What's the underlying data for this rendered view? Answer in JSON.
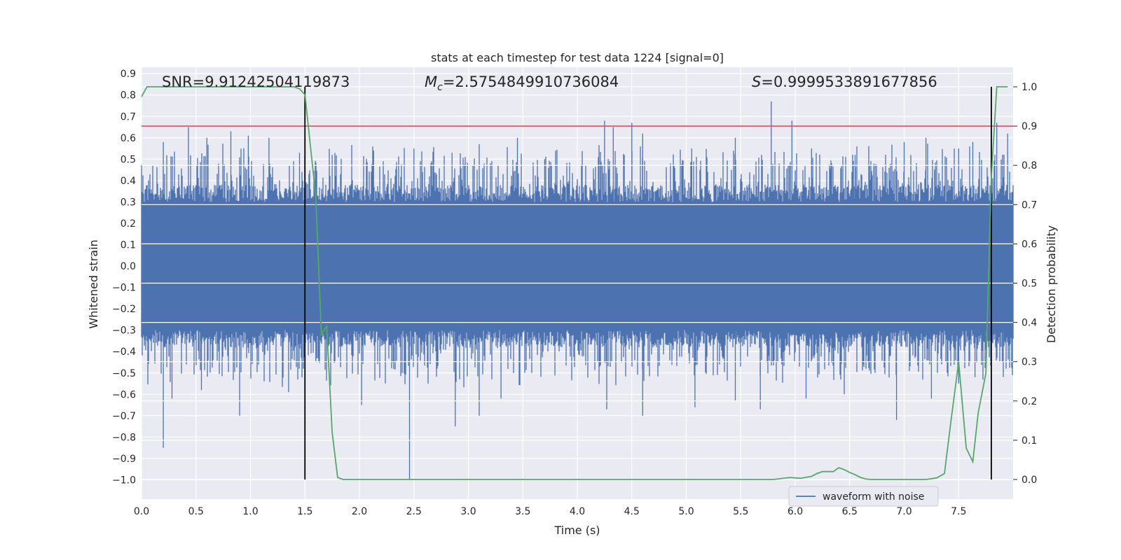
{
  "chart_data": {
    "type": "line",
    "title": "stats at each timestep for test data 1224 [signal=0]",
    "xlabel": "Time (s)",
    "ylabel": "Whitened strain",
    "y2label": "Detection probability",
    "xlim": [
      0.0,
      8.0
    ],
    "ylim": [
      -1.09,
      0.93
    ],
    "y2lim": [
      -0.05,
      1.05
    ],
    "xticks": [
      "0.0",
      "0.5",
      "1.0",
      "1.5",
      "2.0",
      "2.5",
      "3.0",
      "3.5",
      "4.0",
      "4.5",
      "5.0",
      "5.5",
      "6.0",
      "6.5",
      "7.0",
      "7.5"
    ],
    "yticks": [
      "0.9",
      "0.8",
      "0.7",
      "0.6",
      "0.5",
      "0.4",
      "0.3",
      "0.2",
      "0.1",
      "0.0",
      "−0.1",
      "−0.2",
      "−0.3",
      "−0.4",
      "−0.5",
      "−0.6",
      "−0.7",
      "−0.8",
      "−0.9",
      "−1.0"
    ],
    "y2ticks": [
      "1.0",
      "0.9",
      "0.8",
      "0.7",
      "0.6",
      "0.5",
      "0.4",
      "0.3",
      "0.2",
      "0.1",
      "0.0"
    ],
    "annotations": {
      "snr": "SNR=9.91242504119873",
      "mc_prefix": "M",
      "mc_sub": "c",
      "mc_value": "=2.5754849910736084",
      "s_prefix": "S",
      "s_value": "=0.9999533891677856"
    },
    "threshold_y2": 0.9,
    "vlines_x": [
      1.5,
      7.8
    ],
    "legend": {
      "label": "waveform with noise",
      "location": "lower-right"
    },
    "series": [
      {
        "name": "waveform with noise",
        "color": "#4c72b0",
        "description": "whitened strain noise, dense band approx ±0.4 with spikes",
        "peaks_high": [
          [
            0.2,
            0.58
          ],
          [
            0.43,
            0.65
          ],
          [
            0.6,
            0.6
          ],
          [
            0.82,
            0.63
          ],
          [
            0.98,
            0.61
          ],
          [
            1.17,
            0.6
          ],
          [
            1.45,
            0.53
          ],
          [
            1.75,
            0.52
          ],
          [
            2.13,
            0.54
          ],
          [
            2.5,
            0.55
          ],
          [
            2.85,
            0.53
          ],
          [
            3.1,
            0.57
          ],
          [
            3.45,
            0.6
          ],
          [
            3.7,
            0.5
          ],
          [
            4.25,
            0.68
          ],
          [
            4.33,
            0.65
          ],
          [
            4.5,
            0.67
          ],
          [
            4.6,
            0.62
          ],
          [
            5.05,
            0.55
          ],
          [
            5.45,
            0.6
          ],
          [
            5.78,
            0.77
          ],
          [
            5.97,
            0.68
          ],
          [
            6.15,
            0.55
          ],
          [
            6.55,
            0.52
          ],
          [
            7.0,
            0.58
          ],
          [
            7.2,
            0.6
          ],
          [
            7.5,
            0.55
          ],
          [
            7.63,
            0.58
          ],
          [
            7.85,
            0.67
          ],
          [
            7.95,
            0.62
          ]
        ],
        "peaks_low": [
          [
            0.2,
            -0.85
          ],
          [
            0.28,
            -0.62
          ],
          [
            0.55,
            -0.58
          ],
          [
            0.9,
            -0.7
          ],
          [
            1.35,
            -0.59
          ],
          [
            1.6,
            -0.45
          ],
          [
            2.02,
            -0.65
          ],
          [
            2.46,
            -1.0
          ],
          [
            2.63,
            -0.52
          ],
          [
            2.88,
            -0.75
          ],
          [
            3.1,
            -0.7
          ],
          [
            3.3,
            -0.62
          ],
          [
            4.27,
            -0.67
          ],
          [
            4.6,
            -0.7
          ],
          [
            5.08,
            -0.66
          ],
          [
            5.45,
            -0.63
          ],
          [
            5.68,
            -0.67
          ],
          [
            6.1,
            -0.62
          ],
          [
            6.45,
            -0.6
          ],
          [
            6.93,
            -0.72
          ],
          [
            7.25,
            -0.62
          ],
          [
            7.5,
            -0.55
          ],
          [
            7.65,
            -0.52
          ],
          [
            7.9,
            -0.45
          ]
        ]
      },
      {
        "name": "detection probability",
        "color": "#55a868",
        "axis": "right",
        "x": [
          0.0,
          0.05,
          0.1,
          0.2,
          0.3,
          0.4,
          0.5,
          0.6,
          0.7,
          0.8,
          0.9,
          1.0,
          1.1,
          1.2,
          1.3,
          1.4,
          1.45,
          1.5,
          1.55,
          1.6,
          1.65,
          1.7,
          1.75,
          1.8,
          1.85,
          1.9,
          2.0,
          2.2,
          2.5,
          2.8,
          3.0,
          3.2,
          3.5,
          3.8,
          4.0,
          4.3,
          4.6,
          4.8,
          5.0,
          5.3,
          5.6,
          5.8,
          5.95,
          6.05,
          6.15,
          6.2,
          6.25,
          6.3,
          6.35,
          6.4,
          6.45,
          6.5,
          6.55,
          6.6,
          6.65,
          6.7,
          6.8,
          6.9,
          7.0,
          7.1,
          7.2,
          7.3,
          7.37,
          7.43,
          7.5,
          7.57,
          7.63,
          7.68,
          7.75,
          7.8,
          7.85,
          7.9,
          7.95
        ],
        "values": [
          0.975,
          1.0,
          1.0,
          1.0,
          1.0,
          1.0,
          1.0,
          1.0,
          1.0,
          1.0,
          1.0,
          1.0,
          1.0,
          1.0,
          1.0,
          1.0,
          0.995,
          0.98,
          0.85,
          0.72,
          0.37,
          0.39,
          0.12,
          0.005,
          0.0,
          0.0,
          0.0,
          0.0,
          0.0,
          0.0,
          0.0,
          0.0,
          0.0,
          0.0,
          0.0,
          0.0,
          0.0,
          0.0,
          0.0,
          0.0,
          0.0,
          0.0,
          0.005,
          0.003,
          0.008,
          0.015,
          0.02,
          0.02,
          0.02,
          0.03,
          0.025,
          0.018,
          0.012,
          0.005,
          0.001,
          0.0,
          0.0,
          0.0,
          0.0,
          0.0,
          0.0,
          0.004,
          0.015,
          0.15,
          0.3,
          0.08,
          0.045,
          0.17,
          0.27,
          0.77,
          1.0,
          1.0,
          1.0
        ]
      }
    ]
  }
}
